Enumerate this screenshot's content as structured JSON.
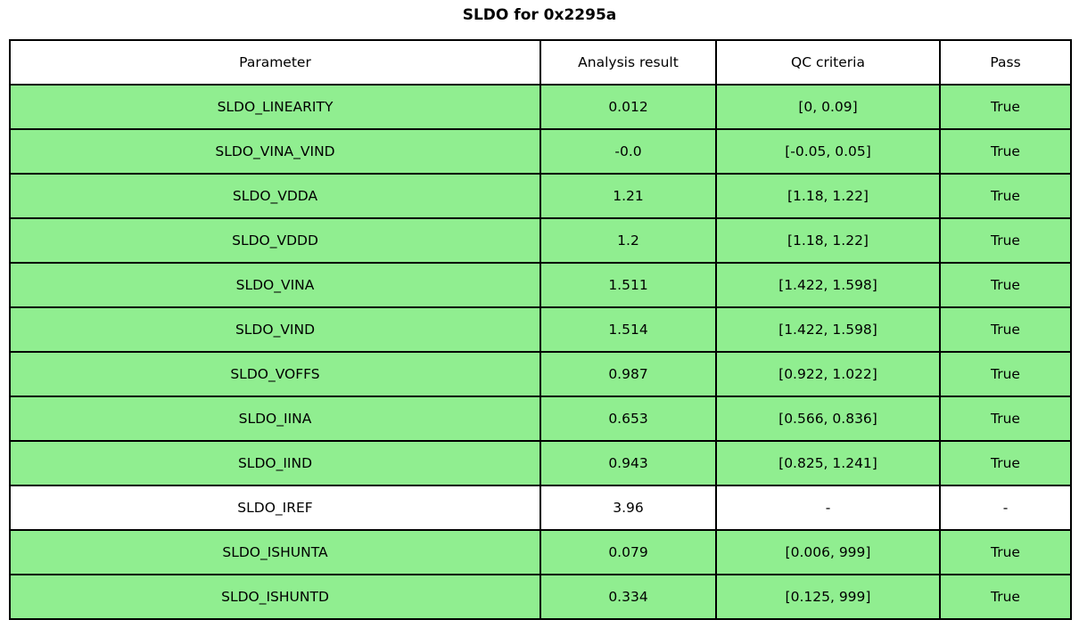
{
  "title": "SLDO for 0x2295a",
  "colors": {
    "pass_row_bg": "#90ee90",
    "neutral_row_bg": "#ffffff",
    "border": "#000000"
  },
  "table": {
    "headers": [
      "Parameter",
      "Analysis result",
      "QC criteria",
      "Pass"
    ],
    "rows": [
      {
        "parameter": "SLDO_LINEARITY",
        "result": "0.012",
        "criteria": "[0, 0.09]",
        "pass": "True",
        "highlight": true
      },
      {
        "parameter": "SLDO_VINA_VIND",
        "result": "-0.0",
        "criteria": "[-0.05, 0.05]",
        "pass": "True",
        "highlight": true
      },
      {
        "parameter": "SLDO_VDDA",
        "result": "1.21",
        "criteria": "[1.18, 1.22]",
        "pass": "True",
        "highlight": true
      },
      {
        "parameter": "SLDO_VDDD",
        "result": "1.2",
        "criteria": "[1.18, 1.22]",
        "pass": "True",
        "highlight": true
      },
      {
        "parameter": "SLDO_VINA",
        "result": "1.511",
        "criteria": "[1.422, 1.598]",
        "pass": "True",
        "highlight": true
      },
      {
        "parameter": "SLDO_VIND",
        "result": "1.514",
        "criteria": "[1.422, 1.598]",
        "pass": "True",
        "highlight": true
      },
      {
        "parameter": "SLDO_VOFFS",
        "result": "0.987",
        "criteria": "[0.922, 1.022]",
        "pass": "True",
        "highlight": true
      },
      {
        "parameter": "SLDO_IINA",
        "result": "0.653",
        "criteria": "[0.566, 0.836]",
        "pass": "True",
        "highlight": true
      },
      {
        "parameter": "SLDO_IIND",
        "result": "0.943",
        "criteria": "[0.825, 1.241]",
        "pass": "True",
        "highlight": true
      },
      {
        "parameter": "SLDO_IREF",
        "result": "3.96",
        "criteria": "-",
        "pass": "-",
        "highlight": false
      },
      {
        "parameter": "SLDO_ISHUNTA",
        "result": "0.079",
        "criteria": "[0.006, 999]",
        "pass": "True",
        "highlight": true
      },
      {
        "parameter": "SLDO_ISHUNTD",
        "result": "0.334",
        "criteria": "[0.125, 999]",
        "pass": "True",
        "highlight": true
      }
    ]
  }
}
